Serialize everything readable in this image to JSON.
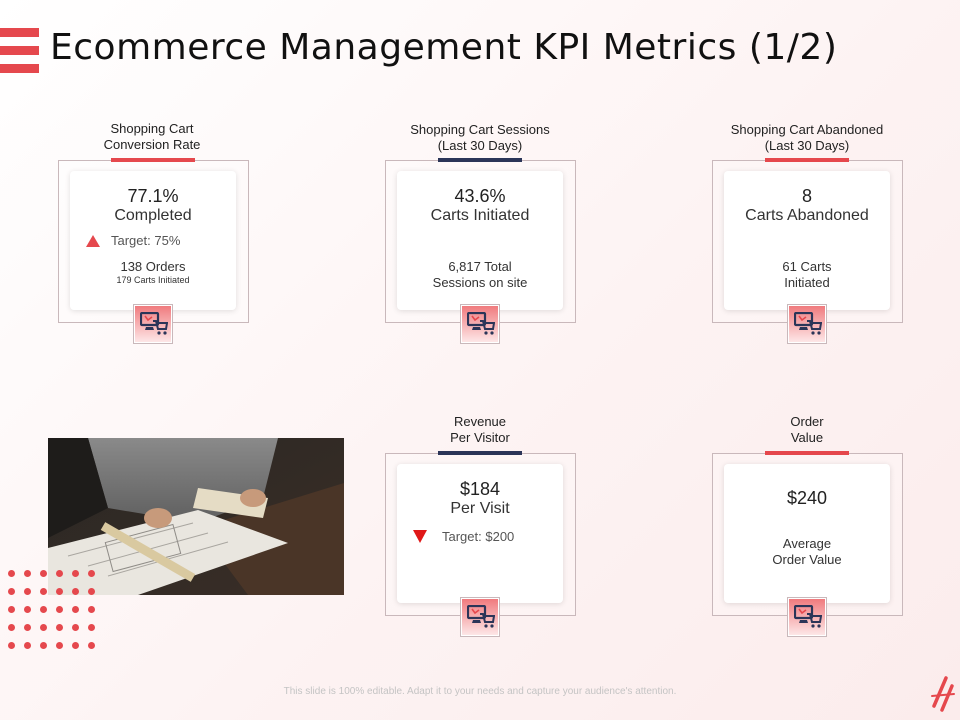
{
  "header": {
    "title": "Ecommerce Management KPI Metrics (1/2)"
  },
  "colors": {
    "accent": "#e5484d",
    "navy": "#2b3558",
    "down": "#e01818"
  },
  "cards": {
    "conversion": {
      "label": "Shopping  Cart\nConversion  Rate",
      "value": "77.1%",
      "caption": "Completed",
      "target": "Target: 75%",
      "detail": "138 Orders",
      "detail_small": "179 Carts Initiated",
      "trend": "up"
    },
    "sessions": {
      "label": "Shopping  Cart Sessions\n(Last 30 Days)",
      "value": "43.6%",
      "caption": "Carts Initiated",
      "detail": "6,817 Total\nSessions on site"
    },
    "abandoned": {
      "label": "Shopping  Cart Abandoned\n(Last 30 Days)",
      "value": "8",
      "caption": "Carts Abandoned",
      "detail": "61 Carts\nInitiated"
    },
    "revenue": {
      "label": "Revenue\nPer Visitor",
      "value": "$184",
      "caption": "Per Visit",
      "target": "Target: $200",
      "trend": "down"
    },
    "order_value": {
      "label": "Order\nValue",
      "value": "$240",
      "detail": "Average\nOrder  Value"
    }
  },
  "icons": {
    "card_icon": "shopping-cart-monitor-icon"
  },
  "footer": {
    "text": "This slide is 100% editable. Adapt it to your needs and capture your audience's attention."
  }
}
